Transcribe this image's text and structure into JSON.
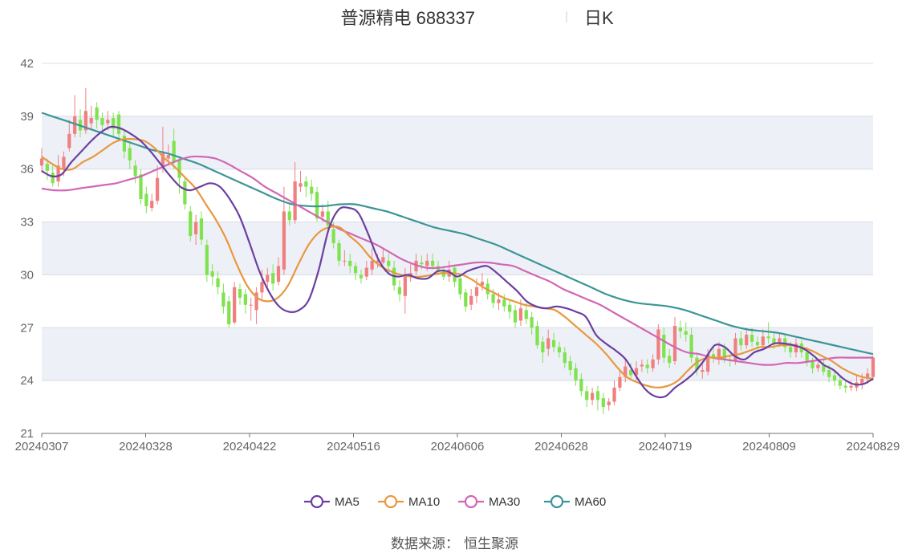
{
  "chart_data": {
    "type": "candlestick",
    "title": "普源精电 688337",
    "subtitle": "日K",
    "source_label": "数据来源：",
    "source_value": "恒生聚源",
    "ylim": [
      21,
      42
    ],
    "y_ticks": [
      21,
      24,
      27,
      30,
      33,
      36,
      39,
      42
    ],
    "x_tick_labels": [
      "20240307",
      "20240328",
      "20240422",
      "20240516",
      "20240606",
      "20240628",
      "20240719",
      "20240809",
      "20240829"
    ],
    "grid": "horizontal",
    "legend_position": "bottom",
    "colors": {
      "up": "#f08080",
      "down": "#7fe34f",
      "MA5": "#6b3fa0",
      "MA10": "#e8983e",
      "MA30": "#d266b4",
      "MA60": "#3b9596",
      "band": "#eef0f8",
      "grid": "#d9dce8"
    },
    "candles": [
      [
        36.2,
        36.6,
        37.2,
        35.8
      ],
      [
        36.3,
        35.9,
        36.6,
        35.4
      ],
      [
        35.8,
        35.2,
        36.2,
        35.0
      ],
      [
        35.3,
        36.2,
        36.8,
        35.0
      ],
      [
        36.0,
        36.7,
        37.0,
        35.6
      ],
      [
        37.2,
        38.0,
        38.8,
        37.0
      ],
      [
        38.0,
        39.0,
        40.2,
        37.8
      ],
      [
        38.8,
        38.2,
        39.4,
        37.8
      ],
      [
        38.2,
        39.3,
        40.6,
        38.0
      ],
      [
        38.6,
        38.9,
        39.6,
        38.2
      ],
      [
        39.5,
        38.8,
        39.8,
        38.3
      ],
      [
        38.9,
        38.5,
        39.2,
        38.0
      ],
      [
        38.6,
        38.8,
        39.3,
        38.2
      ],
      [
        38.9,
        38.3,
        39.2,
        37.9
      ],
      [
        39.1,
        38.0,
        39.3,
        37.6
      ],
      [
        37.9,
        37.0,
        38.2,
        36.6
      ],
      [
        37.2,
        36.5,
        37.6,
        36.0
      ],
      [
        36.2,
        35.6,
        36.5,
        35.2
      ],
      [
        35.7,
        34.3,
        36.0,
        34.0
      ],
      [
        34.6,
        33.9,
        35.0,
        33.5
      ],
      [
        33.8,
        34.2,
        34.6,
        33.6
      ],
      [
        34.2,
        35.5,
        36.2,
        34.0
      ],
      [
        36.2,
        36.9,
        38.4,
        35.8
      ],
      [
        36.6,
        36.8,
        37.4,
        36.2
      ],
      [
        37.6,
        36.4,
        38.3,
        36.0
      ],
      [
        36.5,
        35.5,
        36.7,
        34.6
      ],
      [
        35.3,
        34.0,
        35.5,
        33.7
      ],
      [
        33.6,
        32.2,
        33.9,
        31.9
      ],
      [
        32.3,
        33.0,
        33.4,
        31.7
      ],
      [
        33.2,
        32.0,
        33.6,
        31.7
      ],
      [
        31.7,
        30.0,
        32.0,
        29.6
      ],
      [
        30.2,
        29.9,
        30.6,
        29.4
      ],
      [
        29.8,
        29.3,
        30.2,
        28.9
      ],
      [
        29.0,
        28.2,
        29.5,
        27.8
      ],
      [
        28.5,
        27.2,
        28.8,
        27.0
      ],
      [
        27.3,
        29.3,
        29.6,
        27.2
      ],
      [
        29.2,
        28.7,
        29.5,
        28.3
      ],
      [
        28.9,
        28.3,
        29.2,
        27.8
      ],
      [
        28.3,
        28.3,
        28.7,
        27.4
      ],
      [
        28.0,
        29.0,
        29.3,
        27.2
      ],
      [
        29.0,
        29.6,
        30.3,
        28.5
      ],
      [
        29.6,
        30.0,
        30.4,
        29.2
      ],
      [
        30.1,
        29.5,
        30.6,
        29.1
      ],
      [
        29.6,
        30.5,
        31.0,
        29.4
      ],
      [
        30.3,
        33.6,
        35.0,
        30.0
      ],
      [
        33.6,
        33.1,
        34.0,
        32.8
      ],
      [
        33.1,
        35.3,
        36.4,
        32.9
      ],
      [
        35.0,
        35.2,
        35.9,
        34.7
      ],
      [
        35.3,
        35.0,
        35.6,
        34.4
      ],
      [
        35.0,
        34.6,
        35.4,
        34.2
      ],
      [
        34.7,
        33.2,
        35.0,
        33.0
      ],
      [
        33.3,
        33.6,
        34.0,
        33.0
      ],
      [
        33.6,
        32.8,
        34.2,
        32.5
      ],
      [
        32.6,
        31.8,
        33.0,
        31.5
      ],
      [
        31.8,
        30.8,
        32.0,
        30.5
      ],
      [
        30.8,
        30.8,
        31.4,
        30.5
      ],
      [
        30.8,
        30.5,
        31.2,
        30.1
      ],
      [
        30.5,
        30.1,
        30.7,
        29.7
      ],
      [
        30.0,
        29.8,
        30.3,
        29.5
      ],
      [
        29.9,
        30.4,
        30.8,
        29.7
      ],
      [
        30.3,
        30.8,
        31.5,
        30.0
      ],
      [
        30.7,
        30.8,
        31.2,
        30.4
      ],
      [
        30.7,
        31.0,
        31.5,
        30.6
      ],
      [
        30.8,
        30.5,
        31.2,
        30.0
      ],
      [
        30.4,
        29.4,
        30.8,
        29.1
      ],
      [
        29.3,
        28.9,
        29.7,
        28.5
      ],
      [
        28.8,
        30.0,
        30.4,
        27.8
      ],
      [
        29.9,
        30.1,
        30.6,
        29.6
      ],
      [
        30.2,
        30.8,
        31.2,
        30.0
      ],
      [
        30.7,
        30.6,
        31.1,
        30.3
      ],
      [
        30.5,
        30.8,
        31.2,
        30.2
      ],
      [
        30.8,
        30.5,
        31.2,
        30.3
      ],
      [
        30.5,
        30.2,
        30.8,
        30.0
      ],
      [
        30.2,
        29.9,
        30.5,
        29.7
      ],
      [
        29.9,
        30.3,
        30.8,
        29.6
      ],
      [
        30.4,
        29.6,
        30.6,
        29.3
      ],
      [
        29.8,
        28.9,
        30.0,
        28.6
      ],
      [
        29.0,
        28.2,
        29.2,
        27.9
      ],
      [
        28.3,
        28.8,
        29.2,
        28.0
      ],
      [
        28.8,
        29.3,
        29.8,
        28.4
      ],
      [
        29.4,
        29.6,
        30.1,
        29.1
      ],
      [
        29.5,
        28.9,
        29.8,
        28.6
      ],
      [
        28.9,
        28.4,
        29.2,
        28.1
      ],
      [
        28.4,
        28.6,
        29.0,
        28.0
      ],
      [
        28.6,
        28.2,
        28.9,
        27.9
      ],
      [
        28.3,
        27.9,
        28.6,
        27.5
      ],
      [
        28.0,
        27.3,
        28.3,
        27.0
      ],
      [
        27.4,
        28.1,
        28.6,
        27.1
      ],
      [
        28.0,
        27.5,
        28.4,
        27.2
      ],
      [
        27.6,
        27.0,
        27.9,
        26.6
      ],
      [
        27.1,
        26.0,
        27.4,
        25.8
      ],
      [
        26.2,
        25.6,
        26.5,
        25.0
      ],
      [
        25.8,
        26.4,
        26.9,
        25.4
      ],
      [
        26.3,
        25.9,
        26.7,
        25.6
      ],
      [
        25.9,
        25.6,
        26.2,
        25.3
      ],
      [
        25.6,
        25.0,
        25.9,
        24.7
      ],
      [
        25.1,
        24.6,
        25.4,
        24.3
      ],
      [
        24.7,
        24.0,
        25.0,
        23.7
      ],
      [
        24.1,
        23.4,
        24.4,
        23.1
      ],
      [
        23.4,
        22.9,
        23.7,
        22.5
      ],
      [
        22.9,
        23.3,
        23.6,
        22.6
      ],
      [
        23.4,
        22.9,
        23.7,
        22.3
      ],
      [
        23.0,
        22.5,
        23.3,
        22.1
      ],
      [
        22.6,
        22.8,
        23.0,
        22.3
      ],
      [
        22.8,
        23.6,
        24.0,
        22.6
      ],
      [
        23.6,
        24.2,
        24.6,
        23.4
      ],
      [
        24.2,
        24.8,
        25.3,
        23.9
      ],
      [
        24.6,
        24.3,
        25.0,
        24.1
      ],
      [
        24.3,
        24.7,
        25.1,
        24.0
      ],
      [
        24.8,
        24.9,
        25.2,
        24.5
      ],
      [
        24.9,
        24.7,
        25.2,
        24.4
      ],
      [
        24.7,
        25.2,
        25.5,
        24.5
      ],
      [
        25.2,
        26.9,
        27.2,
        24.9
      ],
      [
        26.6,
        25.3,
        27.0,
        25.0
      ],
      [
        25.4,
        25.0,
        25.8,
        24.7
      ],
      [
        25.1,
        27.1,
        27.6,
        24.9
      ],
      [
        27.0,
        26.8,
        27.4,
        26.4
      ],
      [
        26.8,
        26.6,
        27.3,
        26.2
      ],
      [
        26.6,
        25.3,
        27.0,
        25.0
      ],
      [
        25.3,
        24.6,
        25.6,
        24.3
      ],
      [
        24.5,
        24.6,
        25.0,
        24.1
      ],
      [
        24.5,
        25.5,
        25.8,
        24.3
      ],
      [
        25.5,
        25.3,
        25.9,
        25.0
      ],
      [
        25.2,
        25.8,
        26.2,
        24.9
      ],
      [
        25.8,
        25.2,
        26.1,
        25.0
      ],
      [
        25.2,
        25.1,
        25.5,
        24.8
      ],
      [
        25.1,
        26.4,
        26.7,
        24.9
      ],
      [
        26.4,
        26.0,
        26.8,
        25.7
      ],
      [
        26.0,
        26.6,
        27.0,
        25.8
      ],
      [
        26.6,
        26.2,
        27.0,
        25.9
      ],
      [
        26.2,
        26.0,
        26.5,
        25.7
      ],
      [
        26.0,
        26.5,
        26.9,
        25.8
      ],
      [
        26.5,
        26.4,
        27.3,
        26.1
      ],
      [
        26.4,
        26.1,
        26.7,
        25.8
      ],
      [
        26.1,
        26.4,
        26.7,
        25.9
      ],
      [
        26.4,
        25.9,
        26.6,
        25.6
      ],
      [
        25.9,
        25.6,
        26.2,
        25.3
      ],
      [
        25.6,
        26.1,
        26.4,
        25.3
      ],
      [
        26.1,
        25.6,
        26.3,
        25.3
      ],
      [
        25.6,
        25.1,
        25.9,
        24.8
      ],
      [
        25.1,
        24.7,
        25.3,
        24.4
      ],
      [
        24.7,
        24.9,
        25.2,
        24.5
      ],
      [
        24.9,
        24.5,
        25.2,
        24.3
      ],
      [
        24.6,
        24.2,
        24.9,
        23.9
      ],
      [
        24.3,
        24.0,
        24.6,
        23.7
      ],
      [
        24.0,
        23.7,
        24.3,
        23.5
      ],
      [
        23.7,
        23.6,
        24.0,
        23.3
      ],
      [
        23.6,
        23.7,
        24.0,
        23.4
      ],
      [
        23.6,
        23.9,
        24.3,
        23.4
      ],
      [
        23.8,
        24.1,
        24.4,
        23.5
      ],
      [
        24.1,
        24.4,
        24.7,
        23.8
      ],
      [
        24.2,
        25.3,
        25.4,
        24.0
      ]
    ],
    "series": [
      {
        "name": "MA5",
        "values": [
          35.9,
          35.6,
          35.7,
          36.4,
          37.0,
          37.6,
          38.1,
          38.4,
          38.3,
          38.0,
          37.6,
          37.0,
          36.3,
          35.6,
          35.0,
          34.8,
          35.0,
          35.2,
          35.0,
          34.3,
          33.3,
          31.8,
          30.2,
          29.0,
          28.2,
          27.9,
          28.0,
          28.6,
          30.3,
          32.6,
          33.7,
          33.8,
          33.5,
          32.3,
          30.9,
          30.1,
          29.9,
          30.0,
          29.8,
          29.8,
          30.2,
          30.2,
          29.9,
          30.2,
          30.4,
          30.5,
          30.1,
          29.6,
          29.1,
          28.5,
          28.2,
          28.1,
          28.2,
          28.1,
          27.9,
          27.6,
          26.6,
          26.1,
          25.7,
          25.2,
          24.3,
          23.5,
          23.1,
          23.1,
          23.6,
          24.0,
          24.5,
          25.2,
          26.0,
          25.9,
          25.4,
          25.2,
          25.6,
          25.8,
          26.1,
          26.1,
          26.0,
          25.8,
          25.4,
          24.9,
          24.6,
          24.1,
          23.8,
          23.8,
          24.1
        ]
      },
      {
        "name": "MA10",
        "values": [
          36.7,
          36.3,
          36.0,
          36.0,
          36.4,
          36.7,
          37.1,
          37.5,
          37.7,
          37.7,
          37.6,
          37.2,
          36.6,
          36.1,
          35.5,
          34.9,
          34.0,
          33.1,
          32.0,
          30.6,
          29.4,
          28.7,
          28.5,
          28.7,
          29.4,
          30.6,
          31.7,
          32.4,
          32.7,
          32.7,
          32.2,
          31.7,
          31.0,
          30.5,
          30.2,
          30.0,
          29.9,
          29.9,
          30.0,
          30.1,
          30.1,
          30.0,
          29.7,
          29.3,
          29.0,
          28.7,
          28.5,
          28.3,
          28.2,
          28.1,
          28.0,
          27.6,
          27.1,
          26.6,
          26.1,
          25.5,
          24.8,
          24.2,
          23.9,
          23.7,
          23.6,
          23.7,
          24.0,
          24.6,
          25.1,
          25.3,
          25.3,
          25.4,
          25.5,
          25.7,
          25.9,
          25.9,
          26.0,
          26.0,
          25.9,
          25.7,
          25.4,
          25.1,
          24.7,
          24.4,
          24.2,
          24.1
        ]
      },
      {
        "name": "MA30",
        "values": [
          34.9,
          34.8,
          34.8,
          34.9,
          35.0,
          35.1,
          35.2,
          35.4,
          35.6,
          35.9,
          36.2,
          36.5,
          36.7,
          36.7,
          36.6,
          36.3,
          35.9,
          35.5,
          35.0,
          34.6,
          34.2,
          33.8,
          33.4,
          33.0,
          32.6,
          32.3,
          32.0,
          31.7,
          31.3,
          30.9,
          30.6,
          30.4,
          30.4,
          30.5,
          30.6,
          30.7,
          30.7,
          30.6,
          30.5,
          30.2,
          29.9,
          29.6,
          29.2,
          28.9,
          28.6,
          28.3,
          27.9,
          27.5,
          27.1,
          26.7,
          26.3,
          25.9,
          25.6,
          25.5,
          25.3,
          25.2,
          25.1,
          25.0,
          24.9,
          24.9,
          25.0,
          25.0,
          25.1,
          25.2,
          25.3,
          25.3,
          25.3,
          25.3
        ]
      },
      {
        "name": "MA60",
        "values": [
          39.2,
          38.9,
          38.6,
          38.3,
          38.0,
          37.7,
          37.4,
          37.1,
          36.9,
          36.6,
          36.3,
          35.9,
          35.5,
          35.1,
          34.7,
          34.3,
          34.0,
          33.9,
          33.9,
          34.0,
          34.0,
          33.8,
          33.6,
          33.3,
          33.0,
          32.7,
          32.5,
          32.3,
          32.0,
          31.7,
          31.3,
          30.9,
          30.5,
          30.1,
          29.7,
          29.3,
          28.9,
          28.6,
          28.4,
          28.3,
          28.2,
          28.0,
          27.7,
          27.4,
          27.1,
          26.9,
          26.8,
          26.7,
          26.5,
          26.3,
          26.1,
          25.9,
          25.7,
          25.5
        ]
      }
    ]
  }
}
